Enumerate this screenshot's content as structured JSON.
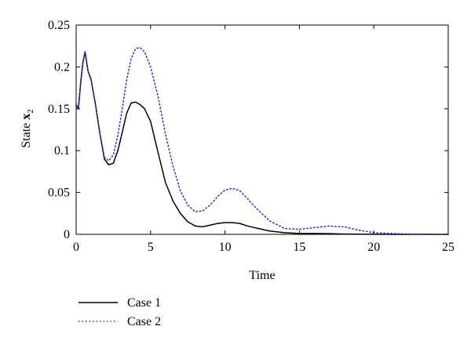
{
  "chart_data": {
    "type": "line",
    "xlabel": "Time",
    "ylabel_prefix": "State ",
    "ylabel_var": "x",
    "ylabel_sub": "2",
    "xlim": [
      0,
      25
    ],
    "ylim": [
      0,
      0.25
    ],
    "xticks": [
      "0",
      "5",
      "10",
      "15",
      "20",
      "25"
    ],
    "yticks": [
      "0",
      "0.05",
      "0.1",
      "0.15",
      "0.2",
      "0.25"
    ],
    "grid": false,
    "legend_position": "below-left",
    "series": [
      {
        "name": "Case 1",
        "color": "#000000",
        "style": "solid",
        "x": [
          0,
          0.15,
          0.3,
          0.45,
          0.6,
          0.8,
          1.0,
          1.3,
          1.6,
          1.9,
          2.2,
          2.5,
          2.8,
          3.1,
          3.4,
          3.7,
          4.0,
          4.3,
          4.6,
          5.0,
          5.5,
          6.0,
          6.5,
          7.0,
          7.5,
          8.0,
          8.5,
          9.0,
          9.5,
          10.0,
          10.5,
          11.0,
          11.5,
          12.0,
          13.0,
          14.0,
          15.0,
          16.0,
          17.0,
          18.0,
          19.0,
          20.0,
          22.0,
          25.0
        ],
        "y": [
          0.155,
          0.15,
          0.18,
          0.205,
          0.218,
          0.195,
          0.185,
          0.155,
          0.12,
          0.09,
          0.083,
          0.085,
          0.1,
          0.122,
          0.145,
          0.157,
          0.158,
          0.155,
          0.15,
          0.135,
          0.098,
          0.062,
          0.04,
          0.025,
          0.015,
          0.01,
          0.009,
          0.011,
          0.013,
          0.014,
          0.014,
          0.013,
          0.01,
          0.008,
          0.004,
          0.002,
          0.001,
          0.001,
          0.0008,
          0.0004,
          0.0002,
          0.0001,
          0.0,
          0.0
        ]
      },
      {
        "name": "Case 2",
        "color": "#2b2bcc",
        "style": "dotted",
        "x": [
          0,
          0.15,
          0.3,
          0.45,
          0.6,
          0.8,
          1.0,
          1.3,
          1.6,
          1.9,
          2.2,
          2.5,
          2.8,
          3.1,
          3.4,
          3.7,
          4.0,
          4.3,
          4.6,
          5.0,
          5.5,
          6.0,
          6.5,
          7.0,
          7.5,
          8.0,
          8.5,
          9.0,
          9.5,
          10.0,
          10.5,
          11.0,
          11.5,
          12.0,
          13.0,
          14.0,
          15.0,
          16.0,
          17.0,
          18.0,
          19.0,
          20.0,
          22.0,
          25.0
        ],
        "y": [
          0.155,
          0.15,
          0.18,
          0.205,
          0.218,
          0.195,
          0.185,
          0.155,
          0.12,
          0.092,
          0.088,
          0.095,
          0.118,
          0.15,
          0.185,
          0.21,
          0.222,
          0.223,
          0.218,
          0.2,
          0.165,
          0.12,
          0.082,
          0.052,
          0.035,
          0.027,
          0.028,
          0.035,
          0.045,
          0.053,
          0.055,
          0.052,
          0.043,
          0.033,
          0.016,
          0.007,
          0.006,
          0.008,
          0.01,
          0.009,
          0.005,
          0.002,
          0.0005,
          0.0
        ]
      }
    ]
  }
}
